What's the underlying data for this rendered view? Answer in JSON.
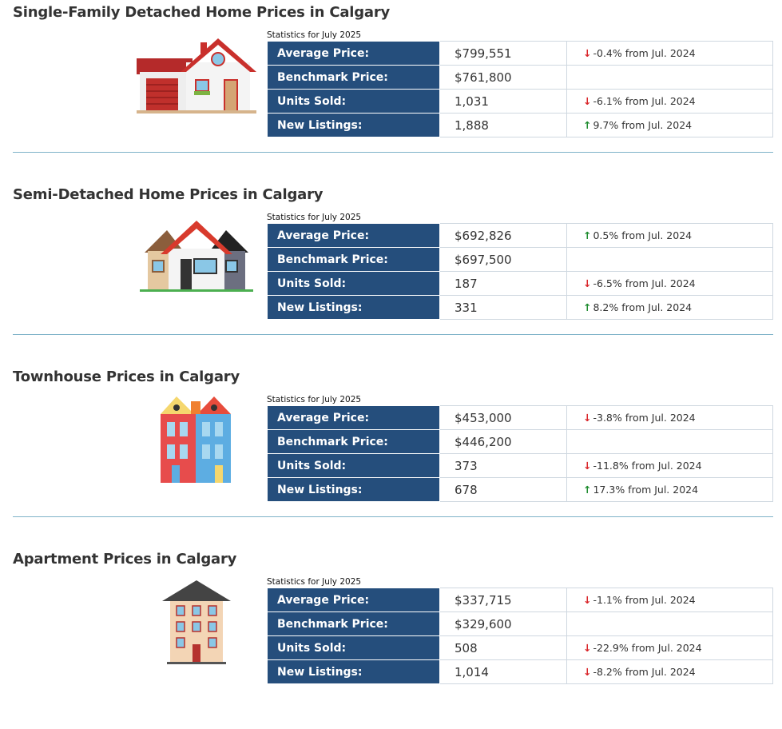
{
  "sections": [
    {
      "title": "Single-Family Detached Home Prices in Calgary",
      "caption": "Statistics for July 2025",
      "icon": "detached-house-icon",
      "rows": [
        {
          "label": "Average Price:",
          "value": "$799,551",
          "dir": "down",
          "change": "-0.4% from Jul. 2024"
        },
        {
          "label": "Benchmark Price:",
          "value": "$761,800",
          "dir": "",
          "change": ""
        },
        {
          "label": "Units Sold:",
          "value": "1,031",
          "dir": "down",
          "change": "-6.1% from Jul. 2024"
        },
        {
          "label": "New Listings:",
          "value": "1,888",
          "dir": "up",
          "change": "9.7% from Jul. 2024"
        }
      ]
    },
    {
      "title": "Semi-Detached Home Prices in Calgary",
      "caption": "Statistics for July 2025",
      "icon": "semi-detached-house-icon",
      "rows": [
        {
          "label": "Average Price:",
          "value": "$692,826",
          "dir": "up",
          "change": "0.5% from Jul. 2024"
        },
        {
          "label": "Benchmark Price:",
          "value": "$697,500",
          "dir": "",
          "change": ""
        },
        {
          "label": "Units Sold:",
          "value": "187",
          "dir": "down",
          "change": "-6.5% from Jul. 2024"
        },
        {
          "label": "New Listings:",
          "value": "331",
          "dir": "up",
          "change": "8.2% from Jul. 2024"
        }
      ]
    },
    {
      "title": "Townhouse Prices in Calgary",
      "caption": "Statistics for July 2025",
      "icon": "townhouse-icon",
      "rows": [
        {
          "label": "Average Price:",
          "value": "$453,000",
          "dir": "down",
          "change": "-3.8% from Jul. 2024"
        },
        {
          "label": "Benchmark Price:",
          "value": "$446,200",
          "dir": "",
          "change": ""
        },
        {
          "label": "Units Sold:",
          "value": "373",
          "dir": "down",
          "change": "-11.8% from Jul. 2024"
        },
        {
          "label": "New Listings:",
          "value": "678",
          "dir": "up",
          "change": "17.3% from Jul. 2024"
        }
      ]
    },
    {
      "title": "Apartment Prices in Calgary",
      "caption": "Statistics for July 2025",
      "icon": "apartment-building-icon",
      "rows": [
        {
          "label": "Average Price:",
          "value": "$337,715",
          "dir": "down",
          "change": "-1.1% from Jul. 2024"
        },
        {
          "label": "Benchmark Price:",
          "value": "$329,600",
          "dir": "",
          "change": ""
        },
        {
          "label": "Units Sold:",
          "value": "508",
          "dir": "down",
          "change": "-22.9% from Jul. 2024"
        },
        {
          "label": "New Listings:",
          "value": "1,014",
          "dir": "down",
          "change": "-8.2% from Jul. 2024"
        }
      ]
    }
  ],
  "colors": {
    "header": "#254e7c",
    "down": "#d9252a",
    "up": "#1e8c2e"
  }
}
